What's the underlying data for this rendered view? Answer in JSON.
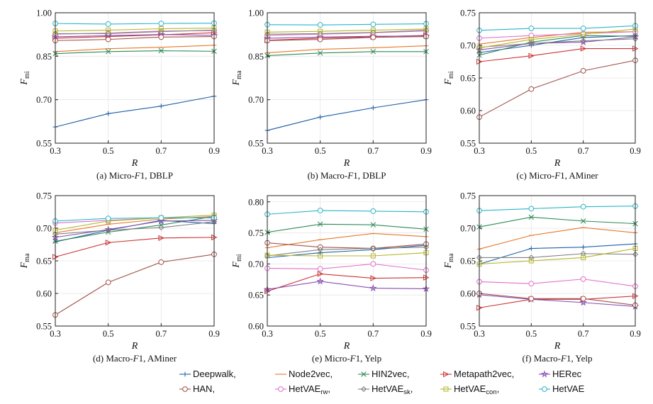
{
  "series_styles": [
    {
      "name": "Deepwalk,",
      "color": "#1f5fa6",
      "marker": "plus"
    },
    {
      "name": "Node2vec,",
      "color": "#e8782a",
      "marker": "hline"
    },
    {
      "name": "HIN2vec,",
      "color": "#2e8b57",
      "marker": "x"
    },
    {
      "name": "Metapath2vec,",
      "color": "#cc3333",
      "marker": "tri-right"
    },
    {
      "name": "HERec",
      "color": "#8a4fb0",
      "marker": "star"
    },
    {
      "name": "HAN,",
      "color": "#a0524a",
      "marker": "circle"
    },
    {
      "name": "HetVAE",
      "sub": "rw",
      "suffix": ",",
      "color": "#e070c8",
      "marker": "circle"
    },
    {
      "name": "HetVAE",
      "sub": "sk",
      "suffix": ",",
      "color": "#808080",
      "marker": "diamond"
    },
    {
      "name": "HetVAE",
      "sub": "con",
      "suffix": ",",
      "color": "#b5b52a",
      "marker": "square"
    },
    {
      "name": "HetVAE",
      "color": "#2bb5c8",
      "marker": "circle"
    }
  ],
  "chart_data": [
    {
      "type": "line",
      "caption": "(a)  Micro-",
      "caption_it": "F",
      "caption_rest": "1, DBLP",
      "xlabel": "R",
      "ylabel": "F",
      "ylabel_sub": "mi",
      "x": [
        0.3,
        0.5,
        0.7,
        0.9
      ],
      "xticks": [
        "0.3",
        "0.5",
        "0.7",
        "0.9"
      ],
      "ylim": [
        0.55,
        1.0
      ],
      "yticks": [
        0.55,
        0.7,
        0.85,
        1.0
      ],
      "ytick_labels": [
        "0.55",
        "0.70",
        "0.85",
        "1.00"
      ],
      "series": [
        {
          "values": [
            0.606,
            0.652,
            0.678,
            0.712
          ]
        },
        {
          "values": [
            0.866,
            0.876,
            0.881,
            0.888
          ]
        },
        {
          "values": [
            0.859,
            0.866,
            0.869,
            0.867
          ]
        },
        {
          "values": [
            0.912,
            0.918,
            0.924,
            0.931
          ]
        },
        {
          "values": [
            0.917,
            0.921,
            0.925,
            0.922
          ]
        },
        {
          "values": [
            0.904,
            0.908,
            0.916,
            0.918
          ]
        },
        {
          "values": [
            0.926,
            0.93,
            0.937,
            0.938
          ]
        },
        {
          "values": [
            0.928,
            0.928,
            0.935,
            0.94
          ]
        },
        {
          "values": [
            0.937,
            0.94,
            0.945,
            0.947
          ]
        },
        {
          "values": [
            0.963,
            0.961,
            0.963,
            0.964
          ]
        }
      ]
    },
    {
      "type": "line",
      "caption": "(b)  Macro-",
      "caption_it": "F",
      "caption_rest": "1, DBLP",
      "xlabel": "R",
      "ylabel": "F",
      "ylabel_sub": "ma",
      "x": [
        0.3,
        0.5,
        0.7,
        0.9
      ],
      "xticks": [
        "0.3",
        "0.5",
        "0.7",
        "0.9"
      ],
      "ylim": [
        0.55,
        1.0
      ],
      "yticks": [
        0.55,
        0.7,
        0.85,
        1.0
      ],
      "ytick_labels": [
        "0.55",
        "0.70",
        "0.85",
        "1.00"
      ],
      "series": [
        {
          "values": [
            0.594,
            0.64,
            0.672,
            0.7
          ]
        },
        {
          "values": [
            0.862,
            0.874,
            0.879,
            0.886
          ]
        },
        {
          "values": [
            0.852,
            0.861,
            0.866,
            0.866
          ]
        },
        {
          "values": [
            0.905,
            0.912,
            0.917,
            0.922
          ]
        },
        {
          "values": [
            0.912,
            0.916,
            0.919,
            0.92
          ]
        },
        {
          "values": [
            0.904,
            0.908,
            0.915,
            0.918
          ]
        },
        {
          "values": [
            0.922,
            0.926,
            0.931,
            0.937
          ]
        },
        {
          "values": [
            0.926,
            0.928,
            0.932,
            0.94
          ]
        },
        {
          "values": [
            0.933,
            0.936,
            0.94,
            0.944
          ]
        },
        {
          "values": [
            0.959,
            0.958,
            0.96,
            0.962
          ]
        }
      ]
    },
    {
      "type": "line",
      "caption": "(c)  Micro-",
      "caption_it": "F",
      "caption_rest": "1, AMiner",
      "xlabel": "R",
      "ylabel": "F",
      "ylabel_sub": "mi",
      "x": [
        0.3,
        0.5,
        0.7,
        0.9
      ],
      "xticks": [
        "0.3",
        "0.5",
        "0.7",
        "0.9"
      ],
      "ylim": [
        0.55,
        0.75
      ],
      "yticks": [
        0.55,
        0.6,
        0.65,
        0.7,
        0.75
      ],
      "ytick_labels": [
        "0.55",
        "0.60",
        "0.65",
        "0.70",
        "0.75"
      ],
      "series": [
        {
          "values": [
            0.689,
            0.7,
            0.712,
            0.715
          ]
        },
        {
          "values": [
            0.702,
            0.712,
            0.72,
            0.721
          ]
        },
        {
          "values": [
            0.685,
            0.705,
            0.715,
            0.714
          ]
        },
        {
          "values": [
            0.675,
            0.684,
            0.695,
            0.695
          ]
        },
        {
          "values": [
            0.693,
            0.703,
            0.705,
            0.713
          ]
        },
        {
          "values": [
            0.59,
            0.633,
            0.661,
            0.677
          ]
        },
        {
          "values": [
            0.711,
            0.715,
            0.718,
            0.721
          ]
        },
        {
          "values": [
            0.697,
            0.703,
            0.707,
            0.71
          ]
        },
        {
          "values": [
            0.696,
            0.709,
            0.717,
            0.725
          ]
        },
        {
          "values": [
            0.723,
            0.726,
            0.726,
            0.73
          ]
        }
      ]
    },
    {
      "type": "line",
      "caption": "(d)  Macro-",
      "caption_it": "F",
      "caption_rest": "1, AMiner",
      "xlabel": "R",
      "ylabel": "F",
      "ylabel_sub": "ma",
      "x": [
        0.3,
        0.5,
        0.7,
        0.9
      ],
      "xticks": [
        "0.3",
        "0.5",
        "0.7",
        "0.9"
      ],
      "ylim": [
        0.55,
        0.75
      ],
      "yticks": [
        0.55,
        0.6,
        0.65,
        0.7,
        0.75
      ],
      "ytick_labels": [
        "0.55",
        "0.60",
        "0.65",
        "0.70",
        "0.75"
      ],
      "series": [
        {
          "values": [
            0.679,
            0.697,
            0.712,
            0.707
          ]
        },
        {
          "values": [
            0.693,
            0.706,
            0.714,
            0.718
          ]
        },
        {
          "values": [
            0.68,
            0.694,
            0.705,
            0.718
          ]
        },
        {
          "values": [
            0.656,
            0.678,
            0.685,
            0.686
          ]
        },
        {
          "values": [
            0.686,
            0.698,
            0.711,
            0.712
          ]
        },
        {
          "values": [
            0.567,
            0.617,
            0.648,
            0.66
          ]
        },
        {
          "values": [
            0.708,
            0.712,
            0.716,
            0.716
          ]
        },
        {
          "values": [
            0.691,
            0.697,
            0.701,
            0.71
          ]
        },
        {
          "values": [
            0.697,
            0.711,
            0.716,
            0.72
          ]
        },
        {
          "values": [
            0.711,
            0.715,
            0.716,
            0.716
          ]
        }
      ]
    },
    {
      "type": "line",
      "caption": "(e)  Micro-",
      "caption_it": "F",
      "caption_rest": "1, Yelp",
      "xlabel": "R",
      "ylabel": "F",
      "ylabel_sub": "mi",
      "x": [
        0.3,
        0.5,
        0.7,
        0.9
      ],
      "xticks": [
        "0.3",
        "0.5",
        "0.7",
        "0.9"
      ],
      "ylim": [
        0.6,
        0.81
      ],
      "yticks": [
        0.6,
        0.65,
        0.7,
        0.75,
        0.8
      ],
      "ytick_labels": [
        "0.60",
        "0.65",
        "0.70",
        "0.75",
        "0.80"
      ],
      "series": [
        {
          "values": [
            0.71,
            0.718,
            0.723,
            0.73
          ]
        },
        {
          "values": [
            0.726,
            0.739,
            0.749,
            0.744
          ]
        },
        {
          "values": [
            0.751,
            0.764,
            0.763,
            0.756
          ]
        },
        {
          "values": [
            0.656,
            0.684,
            0.677,
            0.678
          ]
        },
        {
          "values": [
            0.659,
            0.672,
            0.661,
            0.66
          ]
        },
        {
          "values": [
            0.734,
            0.727,
            0.725,
            0.732
          ]
        },
        {
          "values": [
            0.693,
            0.692,
            0.7,
            0.69
          ]
        },
        {
          "values": [
            0.713,
            0.723,
            0.725,
            0.727
          ]
        },
        {
          "values": [
            0.714,
            0.713,
            0.713,
            0.718
          ]
        },
        {
          "values": [
            0.78,
            0.786,
            0.785,
            0.784
          ]
        }
      ]
    },
    {
      "type": "line",
      "caption": "(f)  Macro-",
      "caption_it": "F",
      "caption_rest": "1, Yelp",
      "xlabel": "R",
      "ylabel": "F",
      "ylabel_sub": "ma",
      "x": [
        0.3,
        0.5,
        0.7,
        0.9
      ],
      "xticks": [
        "0.3",
        "0.5",
        "0.7",
        "0.9"
      ],
      "ylim": [
        0.55,
        0.75
      ],
      "yticks": [
        0.55,
        0.6,
        0.65,
        0.7,
        0.75
      ],
      "ytick_labels": [
        "0.55",
        "0.60",
        "0.65",
        "0.70",
        "0.75"
      ],
      "series": [
        {
          "values": [
            0.645,
            0.669,
            0.671,
            0.676
          ]
        },
        {
          "values": [
            0.668,
            0.689,
            0.701,
            0.693
          ]
        },
        {
          "values": [
            0.702,
            0.717,
            0.711,
            0.707
          ]
        },
        {
          "values": [
            0.578,
            0.591,
            0.591,
            0.596
          ]
        },
        {
          "values": [
            0.598,
            0.591,
            0.586,
            0.58
          ]
        },
        {
          "values": [
            0.6,
            0.592,
            0.592,
            0.582
          ]
        },
        {
          "values": [
            0.618,
            0.615,
            0.622,
            0.611
          ]
        },
        {
          "values": [
            0.655,
            0.655,
            0.661,
            0.66
          ]
        },
        {
          "values": [
            0.645,
            0.65,
            0.655,
            0.669
          ]
        },
        {
          "values": [
            0.727,
            0.73,
            0.733,
            0.734
          ]
        }
      ]
    }
  ]
}
